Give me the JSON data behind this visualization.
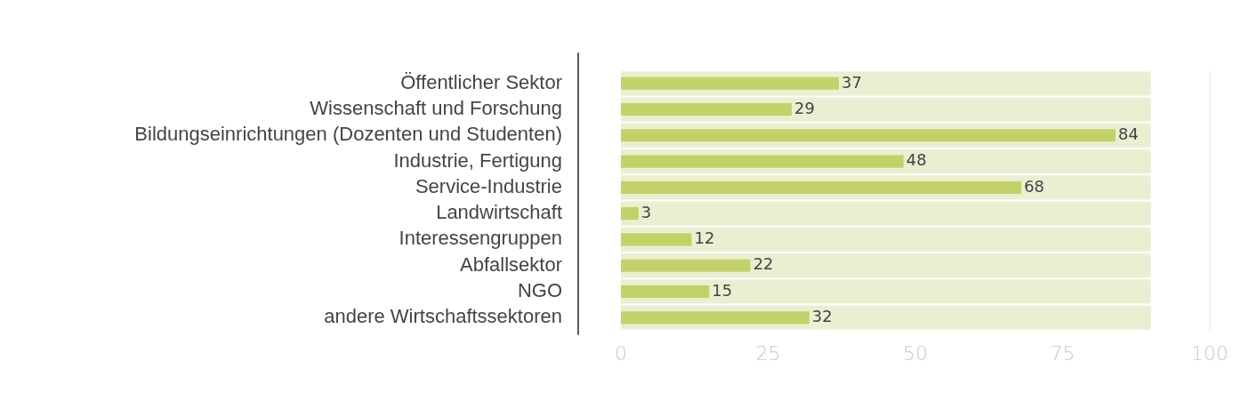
{
  "chart_data": {
    "type": "bar",
    "orientation": "horizontal",
    "categories": [
      "Öffentlicher Sektor",
      "Wissenschaft und Forschung",
      "Bildungseinrichtungen (Dozenten und Studenten)",
      "Industrie, Fertigung",
      "Service-Industrie",
      "Landwirtschaft",
      "Interessengruppen",
      "Abfallsektor",
      "NGO",
      "andere Wirtschaftssektoren"
    ],
    "series": [
      {
        "color": "#c3d168",
        "values": [
          37,
          29,
          84,
          48,
          68,
          3,
          12,
          22,
          15,
          32
        ],
        "value_labels": [
          "37",
          "29",
          "84",
          "48",
          "68",
          "3",
          "12",
          "22",
          "15",
          "32"
        ]
      },
      {
        "color": "#e9efd1",
        "values": [
          90,
          90,
          90,
          90,
          90,
          90,
          90,
          90,
          90,
          90
        ]
      }
    ],
    "xlim": [
      0,
      100
    ],
    "xticks": [
      0,
      25,
      50,
      75,
      100
    ],
    "grid": false,
    "legend": false
  }
}
